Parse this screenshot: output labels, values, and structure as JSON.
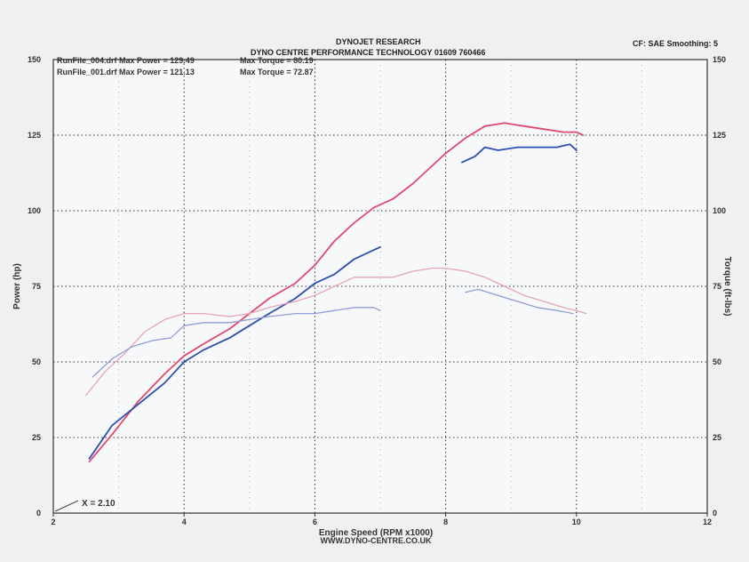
{
  "header": {
    "title": "DYNOJET RESEARCH",
    "subtitle": "DYNO CENTRE PERFORMANCE TECHNOLOGY 01609 760466",
    "settings": "CF: SAE  Smoothing: 5"
  },
  "runs": [
    {
      "file": "RunFile_004.drf Max Power = 129.49",
      "torque": "Max Torque = 80.19"
    },
    {
      "file": "RunFile_001.drf Max Power = 121.13",
      "torque": "Max Torque = 72.87"
    }
  ],
  "annotation": "X = 2.10",
  "footer": "WWW.DYNO-CENTRE.CO.UK",
  "colors": {
    "run_004": "#e04a6e",
    "run_001": "#2f4fae",
    "run_004_torque": "#e3a6b6",
    "run_001_torque": "#8f9fd6"
  },
  "chart_data": {
    "type": "line",
    "xlabel": "Engine Speed (RPM x1000)",
    "ylabel": "Power (hp)",
    "y2label": "Torque (ft-lbs)",
    "xlim": [
      2,
      12
    ],
    "ylim": [
      0,
      150
    ],
    "y2lim": [
      0,
      150
    ],
    "grid": true,
    "x_ticks": [
      "2",
      "4",
      "6",
      "8",
      "10",
      "12"
    ],
    "y_ticks": [
      "0",
      "25",
      "50",
      "75",
      "100",
      "125",
      "150"
    ],
    "y2_ticks": [
      "0",
      "25",
      "50",
      "75",
      "100",
      "125",
      "150"
    ],
    "series": [
      {
        "name": "RunFile_004.drf Max Power = 129.49",
        "kind": "power",
        "color": "#e04a6e",
        "x": [
          2.55,
          2.9,
          3.3,
          3.7,
          4.0,
          4.3,
          4.7,
          5.0,
          5.3,
          5.7,
          6.0,
          6.3,
          6.6,
          6.9,
          7.2,
          7.5,
          7.8,
          8.0,
          8.3,
          8.6,
          8.9,
          9.2,
          9.5,
          9.8,
          10.0,
          10.1
        ],
        "y": [
          17,
          26,
          37,
          46,
          52,
          56,
          61,
          66,
          71,
          76,
          82,
          90,
          96,
          101,
          104,
          109,
          115,
          119,
          124,
          128,
          129,
          128,
          127,
          126,
          126,
          125
        ]
      },
      {
        "name": "RunFile_001.drf Max Power = 121.13",
        "kind": "power",
        "color": "#2f4fae",
        "x": [
          2.55,
          2.9,
          3.3,
          3.7,
          4.0,
          4.3,
          4.7,
          5.0,
          5.3,
          5.7,
          6.0,
          6.3,
          6.6,
          6.9,
          7.0
        ],
        "y": [
          18,
          29,
          36,
          43,
          50,
          54,
          58,
          62,
          66,
          71,
          76,
          79,
          84,
          87,
          88
        ]
      },
      {
        "name": "RunFile_001.drf Max Power = 121.13",
        "kind": "power",
        "color": "#2f4fae",
        "x": [
          8.25,
          8.45,
          8.6,
          8.8,
          9.1,
          9.4,
          9.7,
          9.9,
          10.0
        ],
        "y": [
          116,
          118,
          121,
          120,
          121,
          121,
          121,
          122,
          120
        ]
      },
      {
        "name": "RunFile_004.drf Max Torque = 80.19",
        "kind": "torque",
        "color": "#e3a6b6",
        "x": [
          2.5,
          2.8,
          3.1,
          3.4,
          3.7,
          4.0,
          4.3,
          4.7,
          5.0,
          5.3,
          5.7,
          6.0,
          6.3,
          6.6,
          6.9,
          7.2,
          7.5,
          7.8,
          8.0,
          8.3,
          8.6,
          8.9,
          9.2,
          9.5,
          9.8,
          10.0,
          10.15
        ],
        "y": [
          39,
          47,
          53,
          60,
          64,
          66,
          66,
          65,
          66,
          68,
          70,
          72,
          75,
          78,
          78,
          78,
          80,
          81,
          81,
          80,
          78,
          75,
          72,
          70,
          68,
          67,
          66
        ]
      },
      {
        "name": "RunFile_001.drf Max Torque = 72.87",
        "kind": "torque",
        "color": "#8f9fd6",
        "x": [
          2.6,
          2.9,
          3.2,
          3.5,
          3.8,
          4.0,
          4.3,
          4.7,
          5.0,
          5.3,
          5.7,
          6.0,
          6.3,
          6.6,
          6.9,
          7.0
        ],
        "y": [
          45,
          51,
          55,
          57,
          58,
          62,
          63,
          63,
          64,
          65,
          66,
          66,
          67,
          68,
          68,
          67
        ]
      },
      {
        "name": "RunFile_001.drf Max Torque = 72.87",
        "kind": "torque",
        "color": "#8f9fd6",
        "x": [
          8.3,
          8.5,
          8.8,
          9.1,
          9.4,
          9.7,
          9.95
        ],
        "y": [
          73,
          74,
          72,
          70,
          68,
          67,
          66
        ]
      }
    ]
  }
}
